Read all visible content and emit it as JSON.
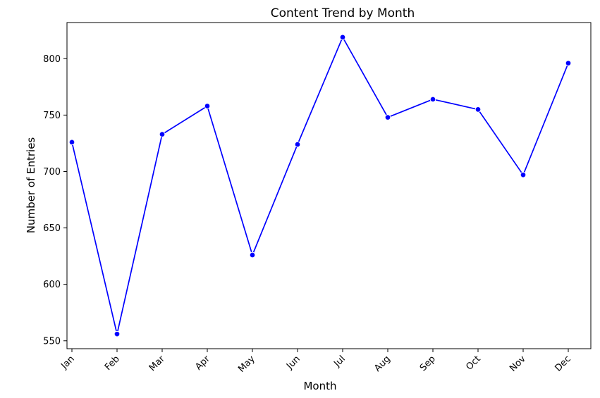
{
  "chart_data": {
    "type": "line",
    "title": "Content Trend by Month",
    "xlabel": "Month",
    "ylabel": "Number of Entries",
    "categories": [
      "Jan",
      "Feb",
      "Mar",
      "Apr",
      "May",
      "Jun",
      "Jul",
      "Aug",
      "Sep",
      "Oct",
      "Nov",
      "Dec"
    ],
    "series": [
      {
        "values": [
          726,
          556,
          733,
          758,
          626,
          724,
          819,
          748,
          764,
          755,
          697,
          796
        ],
        "color": "#0000ff",
        "marker": "circle"
      }
    ],
    "yticks": [
      550,
      600,
      650,
      700,
      750,
      800
    ],
    "ylim": [
      543,
      832
    ],
    "grid": false,
    "legend": "none"
  }
}
